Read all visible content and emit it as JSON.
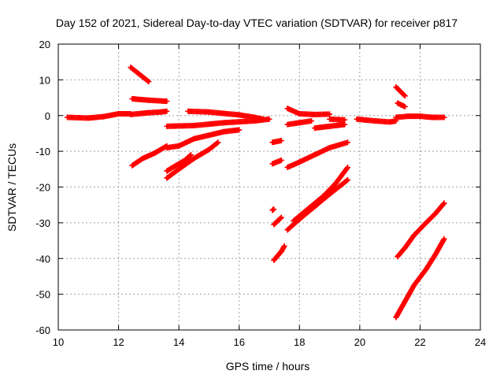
{
  "chart_data": {
    "type": "scatter",
    "title": "Day 152 of 2021, Sidereal Day-to-day VTEC variation (SDTVAR) for receiver p817",
    "xlabel": "GPS time / hours",
    "ylabel": "SDTVAR / TECUs",
    "xlim": [
      10,
      24
    ],
    "ylim": [
      -60,
      20
    ],
    "xticks": [
      10,
      12,
      14,
      16,
      18,
      20,
      22,
      24
    ],
    "yticks": [
      -60,
      -50,
      -40,
      -30,
      -20,
      -10,
      0,
      10,
      20
    ],
    "grid": true,
    "color": "#ff0000",
    "marker": "plus",
    "segments": [
      {
        "points": [
          [
            10.3,
            -0.5
          ],
          [
            11.0,
            -0.7
          ],
          [
            11.5,
            -0.3
          ],
          [
            12.0,
            0.5
          ],
          [
            12.4,
            0.5
          ]
        ]
      },
      {
        "points": [
          [
            12.4,
            0.3
          ],
          [
            13.0,
            0.8
          ],
          [
            13.4,
            1.0
          ],
          [
            13.6,
            1.2
          ]
        ]
      },
      {
        "points": [
          [
            12.4,
            13.5
          ],
          [
            12.7,
            11.5
          ],
          [
            13.0,
            9.5
          ]
        ]
      },
      {
        "points": [
          [
            12.45,
            4.7
          ],
          [
            13.0,
            4.3
          ],
          [
            13.6,
            4.0
          ]
        ]
      },
      {
        "points": [
          [
            12.45,
            -14
          ],
          [
            12.8,
            -12
          ],
          [
            13.2,
            -10.5
          ],
          [
            13.6,
            -8.5
          ]
        ]
      },
      {
        "points": [
          [
            13.6,
            -9
          ],
          [
            14.0,
            -8.5
          ],
          [
            14.5,
            -6.5
          ],
          [
            15.0,
            -5.5
          ],
          [
            15.5,
            -4.5
          ],
          [
            16.0,
            -4.0
          ]
        ]
      },
      {
        "points": [
          [
            13.6,
            -3.0
          ],
          [
            14.5,
            -2.8
          ],
          [
            15.5,
            -2.0
          ],
          [
            16.5,
            -1.5
          ],
          [
            17.0,
            -1.0
          ]
        ]
      },
      {
        "points": [
          [
            14.3,
            1.2
          ],
          [
            15.0,
            1.0
          ],
          [
            15.6,
            0.5
          ],
          [
            16.0,
            0.2
          ],
          [
            16.5,
            -0.5
          ],
          [
            16.8,
            -1.0
          ]
        ]
      },
      {
        "points": [
          [
            13.6,
            -15.5
          ],
          [
            13.9,
            -14.0
          ],
          [
            14.2,
            -12.5
          ],
          [
            14.4,
            -11.0
          ]
        ]
      },
      {
        "points": [
          [
            13.6,
            -17.5
          ],
          [
            14.0,
            -15.0
          ],
          [
            14.5,
            -12.0
          ],
          [
            15.0,
            -9.5
          ],
          [
            15.3,
            -7.5
          ]
        ]
      },
      {
        "points": [
          [
            17.1,
            -7.5
          ],
          [
            17.4,
            -7.0
          ]
        ]
      },
      {
        "points": [
          [
            17.1,
            -13.5
          ],
          [
            17.4,
            -12.5
          ]
        ]
      },
      {
        "points": [
          [
            17.1,
            -26.5
          ],
          [
            17.15,
            -26.2
          ]
        ]
      },
      {
        "points": [
          [
            17.15,
            -30.5
          ],
          [
            17.4,
            -28.5
          ]
        ]
      },
      {
        "points": [
          [
            17.15,
            -40.5
          ],
          [
            17.4,
            -38.0
          ],
          [
            17.5,
            -36.5
          ]
        ]
      },
      {
        "points": [
          [
            17.6,
            2.0
          ],
          [
            18.0,
            0.5
          ],
          [
            18.5,
            0.3
          ],
          [
            19.0,
            0.4
          ]
        ]
      },
      {
        "points": [
          [
            17.6,
            -2.5
          ],
          [
            18.0,
            -2.0
          ],
          [
            18.4,
            -1.5
          ]
        ]
      },
      {
        "points": [
          [
            18.5,
            -3.5
          ],
          [
            19.0,
            -3.0
          ],
          [
            19.5,
            -2.5
          ]
        ]
      },
      {
        "points": [
          [
            19.0,
            -1.0
          ],
          [
            19.5,
            -1.2
          ]
        ]
      },
      {
        "points": [
          [
            17.6,
            -14.5
          ],
          [
            18.0,
            -13.0
          ],
          [
            18.5,
            -11.0
          ],
          [
            19.0,
            -9.0
          ],
          [
            19.6,
            -7.5
          ]
        ]
      },
      {
        "points": [
          [
            17.6,
            -32.0
          ],
          [
            18.0,
            -29.0
          ],
          [
            18.5,
            -25.5
          ],
          [
            19.0,
            -22.0
          ],
          [
            19.6,
            -18.0
          ]
        ]
      },
      {
        "points": [
          [
            17.8,
            -29.5
          ],
          [
            18.3,
            -26.0
          ],
          [
            18.8,
            -22.5
          ],
          [
            19.2,
            -19.0
          ],
          [
            19.6,
            -14.5
          ]
        ]
      },
      {
        "points": [
          [
            19.9,
            -1.0
          ],
          [
            20.5,
            -1.5
          ],
          [
            21.0,
            -1.8
          ],
          [
            21.2,
            -1.5
          ]
        ]
      },
      {
        "points": [
          [
            21.2,
            -0.5
          ],
          [
            21.6,
            -0.2
          ],
          [
            22.0,
            -0.2
          ],
          [
            22.4,
            -0.5
          ],
          [
            22.8,
            -0.5
          ]
        ]
      },
      {
        "points": [
          [
            21.2,
            8.0
          ],
          [
            21.5,
            5.5
          ]
        ]
      },
      {
        "points": [
          [
            21.25,
            3.5
          ],
          [
            21.5,
            2.5
          ]
        ]
      },
      {
        "points": [
          [
            21.25,
            -39.5
          ],
          [
            21.5,
            -37.0
          ],
          [
            21.8,
            -33.5
          ],
          [
            22.2,
            -30.0
          ],
          [
            22.5,
            -27.5
          ],
          [
            22.8,
            -24.5
          ]
        ]
      },
      {
        "points": [
          [
            21.2,
            -56.5
          ],
          [
            21.5,
            -52.0
          ],
          [
            21.8,
            -47.5
          ],
          [
            22.2,
            -43.0
          ],
          [
            22.5,
            -39.0
          ],
          [
            22.8,
            -34.5
          ]
        ]
      }
    ]
  }
}
